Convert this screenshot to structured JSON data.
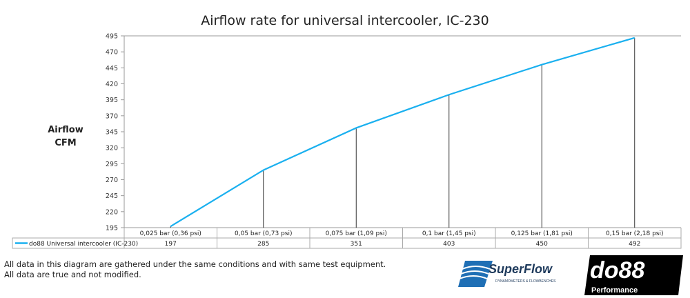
{
  "chart_data": {
    "type": "line",
    "title": "Airflow rate for universal intercooler, IC-230",
    "ylabel_line1": "Airflow",
    "ylabel_line2": "CFM",
    "categories": [
      "0,025 bar (0,36 psi)",
      "0,05 bar (0,73 psi)",
      "0,075 bar (1,09 psi)",
      "0,1 bar (1,45 psi)",
      "0,125 bar (1,81 psi)",
      "0,15 bar (2,18 psi)"
    ],
    "series": [
      {
        "name": "do88 Universal intercooler (IC-230)",
        "values": [
          197,
          285,
          351,
          403,
          450,
          492
        ],
        "color": "#1ab0ef"
      }
    ],
    "ylim": [
      195,
      495
    ],
    "yticks": [
      195,
      220,
      245,
      270,
      295,
      320,
      345,
      370,
      395,
      420,
      445,
      470,
      495
    ],
    "drop_lines": true,
    "data_table": true,
    "grid": false
  },
  "notes": [
    "All data in this diagram are gathered under the same conditions and with same test equipment.",
    "All data are true and not modified."
  ],
  "logos": {
    "superflow": "SuperFlow",
    "superflow_sub": "DYNAMOMETERS & FLOWBENCHES",
    "do88": "do88",
    "do88_sub": "Performance"
  }
}
